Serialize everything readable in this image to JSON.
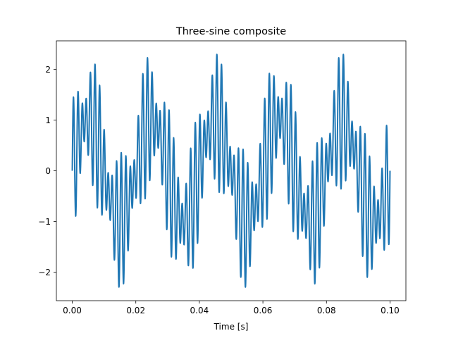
{
  "chart_data": {
    "type": "line",
    "title": "Three-sine composite",
    "xlabel": "Time [s]",
    "ylabel": "",
    "xlim": [
      -0.005,
      0.105
    ],
    "ylim": [
      -2.56,
      2.56
    ],
    "grid": false,
    "legend": "none",
    "x_ticks": [
      0.0,
      0.02,
      0.04,
      0.06,
      0.08,
      0.1
    ],
    "x_tick_labels": [
      "0.00",
      "0.02",
      "0.04",
      "0.06",
      "0.08",
      "0.10"
    ],
    "y_ticks": [
      -2,
      -1,
      0,
      1,
      2
    ],
    "y_tick_labels": [
      "−2",
      "−1",
      "0",
      "1",
      "2"
    ],
    "series": [
      {
        "color": "#1f77b4",
        "x_start": 0.0,
        "x_end": 0.1,
        "components": [
          {
            "amplitude": 1.0,
            "frequency_hz": 50
          },
          {
            "amplitude": 0.5,
            "frequency_hz": 600
          },
          {
            "amplitude": 0.85,
            "frequency_hz": 730
          }
        ]
      }
    ]
  }
}
